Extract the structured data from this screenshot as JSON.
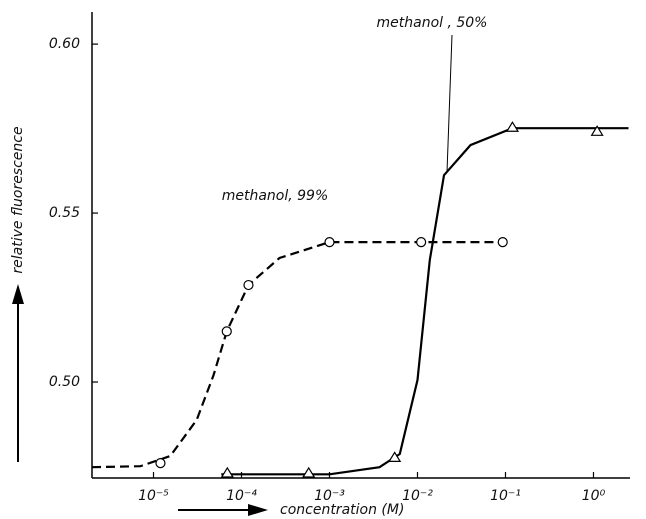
{
  "chart_data": {
    "type": "line",
    "ylabel": "relative fluorescence",
    "xlabel": "concentration (M)",
    "xscale": "log",
    "xlim": [
      2e-06,
      2.6
    ],
    "ylim": [
      0.4716,
      0.6095
    ],
    "xticks": [
      {
        "value": 1e-05,
        "label": "10⁻⁵"
      },
      {
        "value": 0.0001,
        "label": "10⁻⁴"
      },
      {
        "value": 0.001,
        "label": "10⁻³"
      },
      {
        "value": 0.01,
        "label": "10⁻²"
      },
      {
        "value": 0.1,
        "label": "10⁻¹"
      },
      {
        "value": 1,
        "label": "10⁰"
      }
    ],
    "yticks": [
      {
        "value": 0.5,
        "label": "0.50"
      },
      0.55,
      {
        "value": 0.6,
        "label": "0.60"
      }
    ],
    "series": [
      {
        "name": "methanol, 99%",
        "color": "#000000",
        "dash": true,
        "marker": "circle",
        "x": [
          1.2e-05,
          6.8e-05,
          0.00012,
          0.001,
          0.011,
          0.093
        ],
        "values": [
          0.476,
          0.515,
          0.5287,
          0.5414,
          0.5414,
          0.5414
        ],
        "curve": {
          "x": [
            2e-06,
            7.1e-06,
            1.55e-05,
            3.1e-05,
            4.8e-05,
            6.8e-05,
            0.00012,
            0.00027,
            0.001,
            0.093
          ],
          "values": [
            0.4748,
            0.4751,
            0.4781,
            0.4888,
            0.502,
            0.515,
            0.5287,
            0.5367,
            0.5414,
            0.5414
          ]
        }
      },
      {
        "name": "methanol , 50%",
        "color": "#000000",
        "dash": false,
        "marker": "triangle",
        "x": [
          6.9e-05,
          0.00058,
          0.0055,
          0.12,
          1.1
        ],
        "values": [
          0.4731,
          0.4731,
          0.4777,
          0.5754,
          0.5742
        ],
        "curve": {
          "x": [
            5.9e-05,
            0.001,
            0.0037,
            0.0063,
            0.01,
            0.0138,
            0.02,
            0.04,
            0.12,
            2.5
          ],
          "values": [
            0.4727,
            0.4727,
            0.4748,
            0.4787,
            0.5006,
            0.5361,
            0.5612,
            0.5701,
            0.5751,
            0.5751
          ]
        }
      }
    ]
  }
}
